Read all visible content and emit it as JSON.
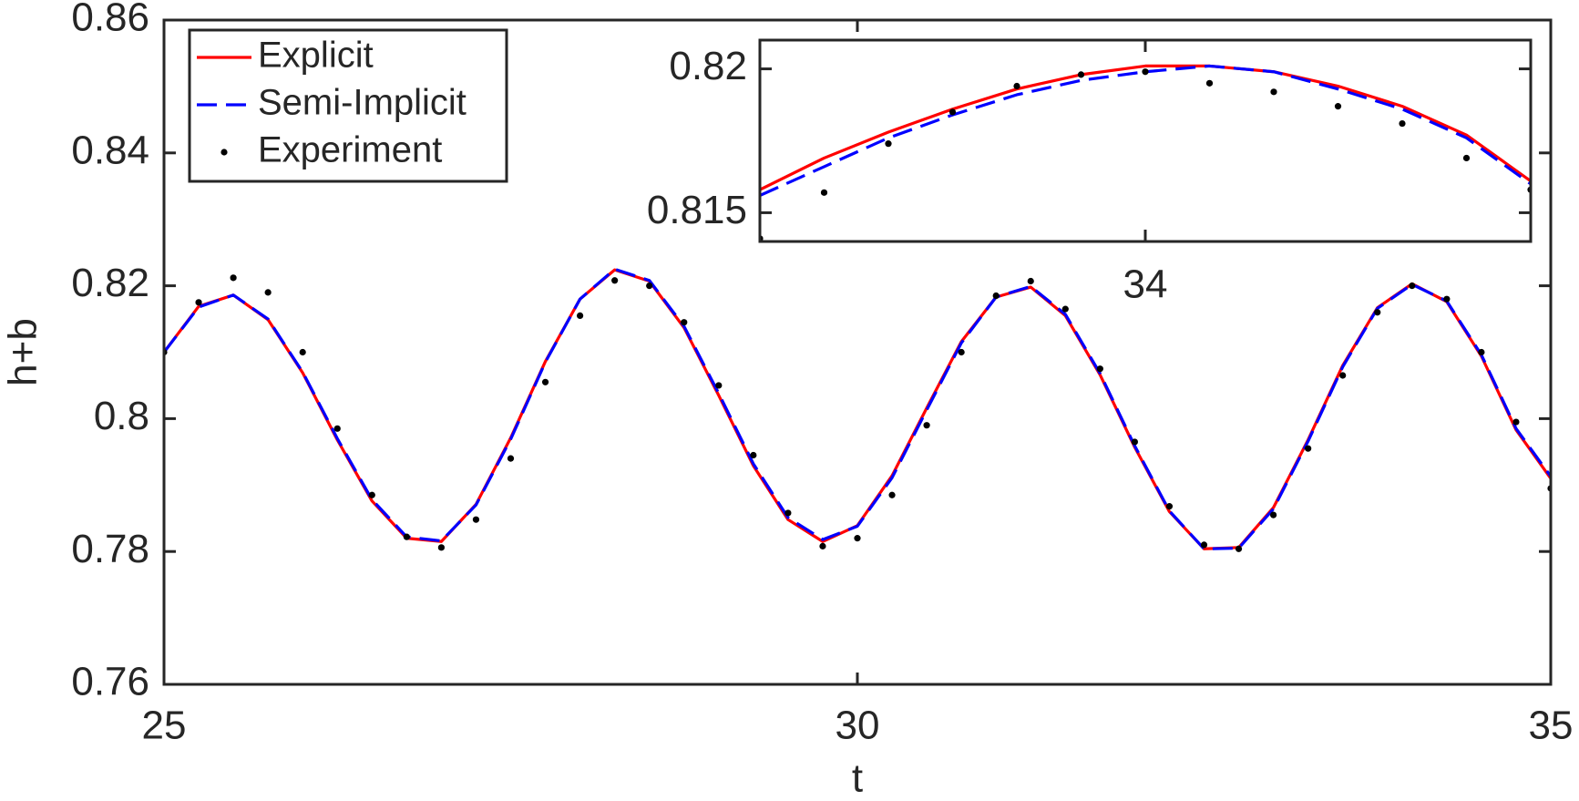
{
  "chart_data": [
    {
      "type": "line",
      "xlabel": "t",
      "ylabel": "h+b",
      "xlim": [
        25,
        35
      ],
      "ylim": [
        0.76,
        0.86
      ],
      "xticks": [
        25,
        30,
        35
      ],
      "yticks": [
        0.76,
        0.78,
        0.8,
        0.82,
        0.84,
        0.86
      ],
      "legend": "northwest",
      "x": [
        25,
        25.25,
        25.5,
        25.75,
        26,
        26.25,
        26.5,
        26.75,
        27,
        27.25,
        27.5,
        27.75,
        28,
        28.25,
        28.5,
        28.75,
        29,
        29.25,
        29.5,
        29.75,
        30,
        30.25,
        30.5,
        30.75,
        31,
        31.25,
        31.5,
        31.75,
        32,
        32.25,
        32.5,
        32.75,
        33,
        33.25,
        33.5,
        33.75,
        34,
        34.25,
        34.5,
        34.75,
        35
      ],
      "series": [
        {
          "name": "Explicit",
          "color": "#ff0000",
          "style": "solid",
          "values": [
            0.81,
            0.8169,
            0.8186,
            0.8149,
            0.8069,
            0.7968,
            0.7876,
            0.782,
            0.7815,
            0.7871,
            0.7971,
            0.8086,
            0.818,
            0.8224,
            0.8207,
            0.8137,
            0.8035,
            0.7929,
            0.7848,
            0.7815,
            0.7839,
            0.7914,
            0.8016,
            0.8116,
            0.8183,
            0.8198,
            0.8155,
            0.8066,
            0.7957,
            0.786,
            0.7804,
            0.7806,
            0.7866,
            0.7968,
            0.808,
            0.8167,
            0.8203,
            0.8176,
            0.8094,
            0.7983,
            0.791
          ]
        },
        {
          "name": "Semi-Implicit",
          "color": "#0000ff",
          "style": "dashed",
          "values": [
            0.81,
            0.8168,
            0.8186,
            0.815,
            0.807,
            0.797,
            0.7878,
            0.7822,
            0.7816,
            0.787,
            0.7969,
            0.8085,
            0.818,
            0.8225,
            0.8208,
            0.8139,
            0.8038,
            0.7932,
            0.7851,
            0.7818,
            0.7838,
            0.7911,
            0.8013,
            0.8114,
            0.8183,
            0.8199,
            0.8157,
            0.8068,
            0.7959,
            0.7861,
            0.7804,
            0.7805,
            0.7864,
            0.7966,
            0.8078,
            0.8166,
            0.8202,
            0.8177,
            0.8096,
            0.7985,
            0.7913
          ]
        },
        {
          "name": "Experiment",
          "color": "#000000",
          "style": "dots",
          "values": [
            0.81,
            0.8175,
            0.8212,
            0.819,
            0.81,
            0.7985,
            0.7885,
            0.7822,
            0.7806,
            0.7848,
            0.794,
            0.8055,
            0.8155,
            0.8208,
            0.82,
            0.8145,
            0.805,
            0.7945,
            0.7858,
            0.7808,
            0.782,
            0.7885,
            0.799,
            0.81,
            0.8185,
            0.8207,
            0.8165,
            0.8075,
            0.7965,
            0.7868,
            0.781,
            0.7804,
            0.7855,
            0.7955,
            0.8065,
            0.816,
            0.82,
            0.818,
            0.81,
            0.7995,
            0.7895
          ]
        }
      ]
    },
    {
      "type": "line",
      "xlim": [
        33.7,
        34.3
      ],
      "ylim": [
        0.814,
        0.821
      ],
      "xticks": [
        34
      ],
      "yticks": [
        0.815,
        0.82
      ],
      "x": [
        33.7,
        33.75,
        33.8,
        33.85,
        33.9,
        33.95,
        34,
        34.05,
        34.1,
        34.15,
        34.2,
        34.25,
        34.3
      ],
      "series": [
        {
          "color": "#ff0000",
          "style": "solid",
          "values": [
            0.8158,
            0.8169,
            0.8178,
            0.8186,
            0.8193,
            0.8198,
            0.8201,
            0.8201,
            0.8199,
            0.8194,
            0.8187,
            0.8177,
            0.8161
          ]
        },
        {
          "color": "#0000ff",
          "style": "dashed",
          "values": [
            0.8156,
            0.8166,
            0.8176,
            0.8184,
            0.8191,
            0.8196,
            0.8199,
            0.8201,
            0.8199,
            0.8193,
            0.8186,
            0.8176,
            0.816
          ]
        },
        {
          "color": "#000000",
          "style": "dots",
          "values": [
            0.8141,
            0.8157,
            0.8174,
            0.8185,
            0.8194,
            0.8198,
            0.8199,
            0.8195,
            0.8192,
            0.8187,
            0.8181,
            0.8169,
            0.8158
          ]
        }
      ]
    }
  ]
}
